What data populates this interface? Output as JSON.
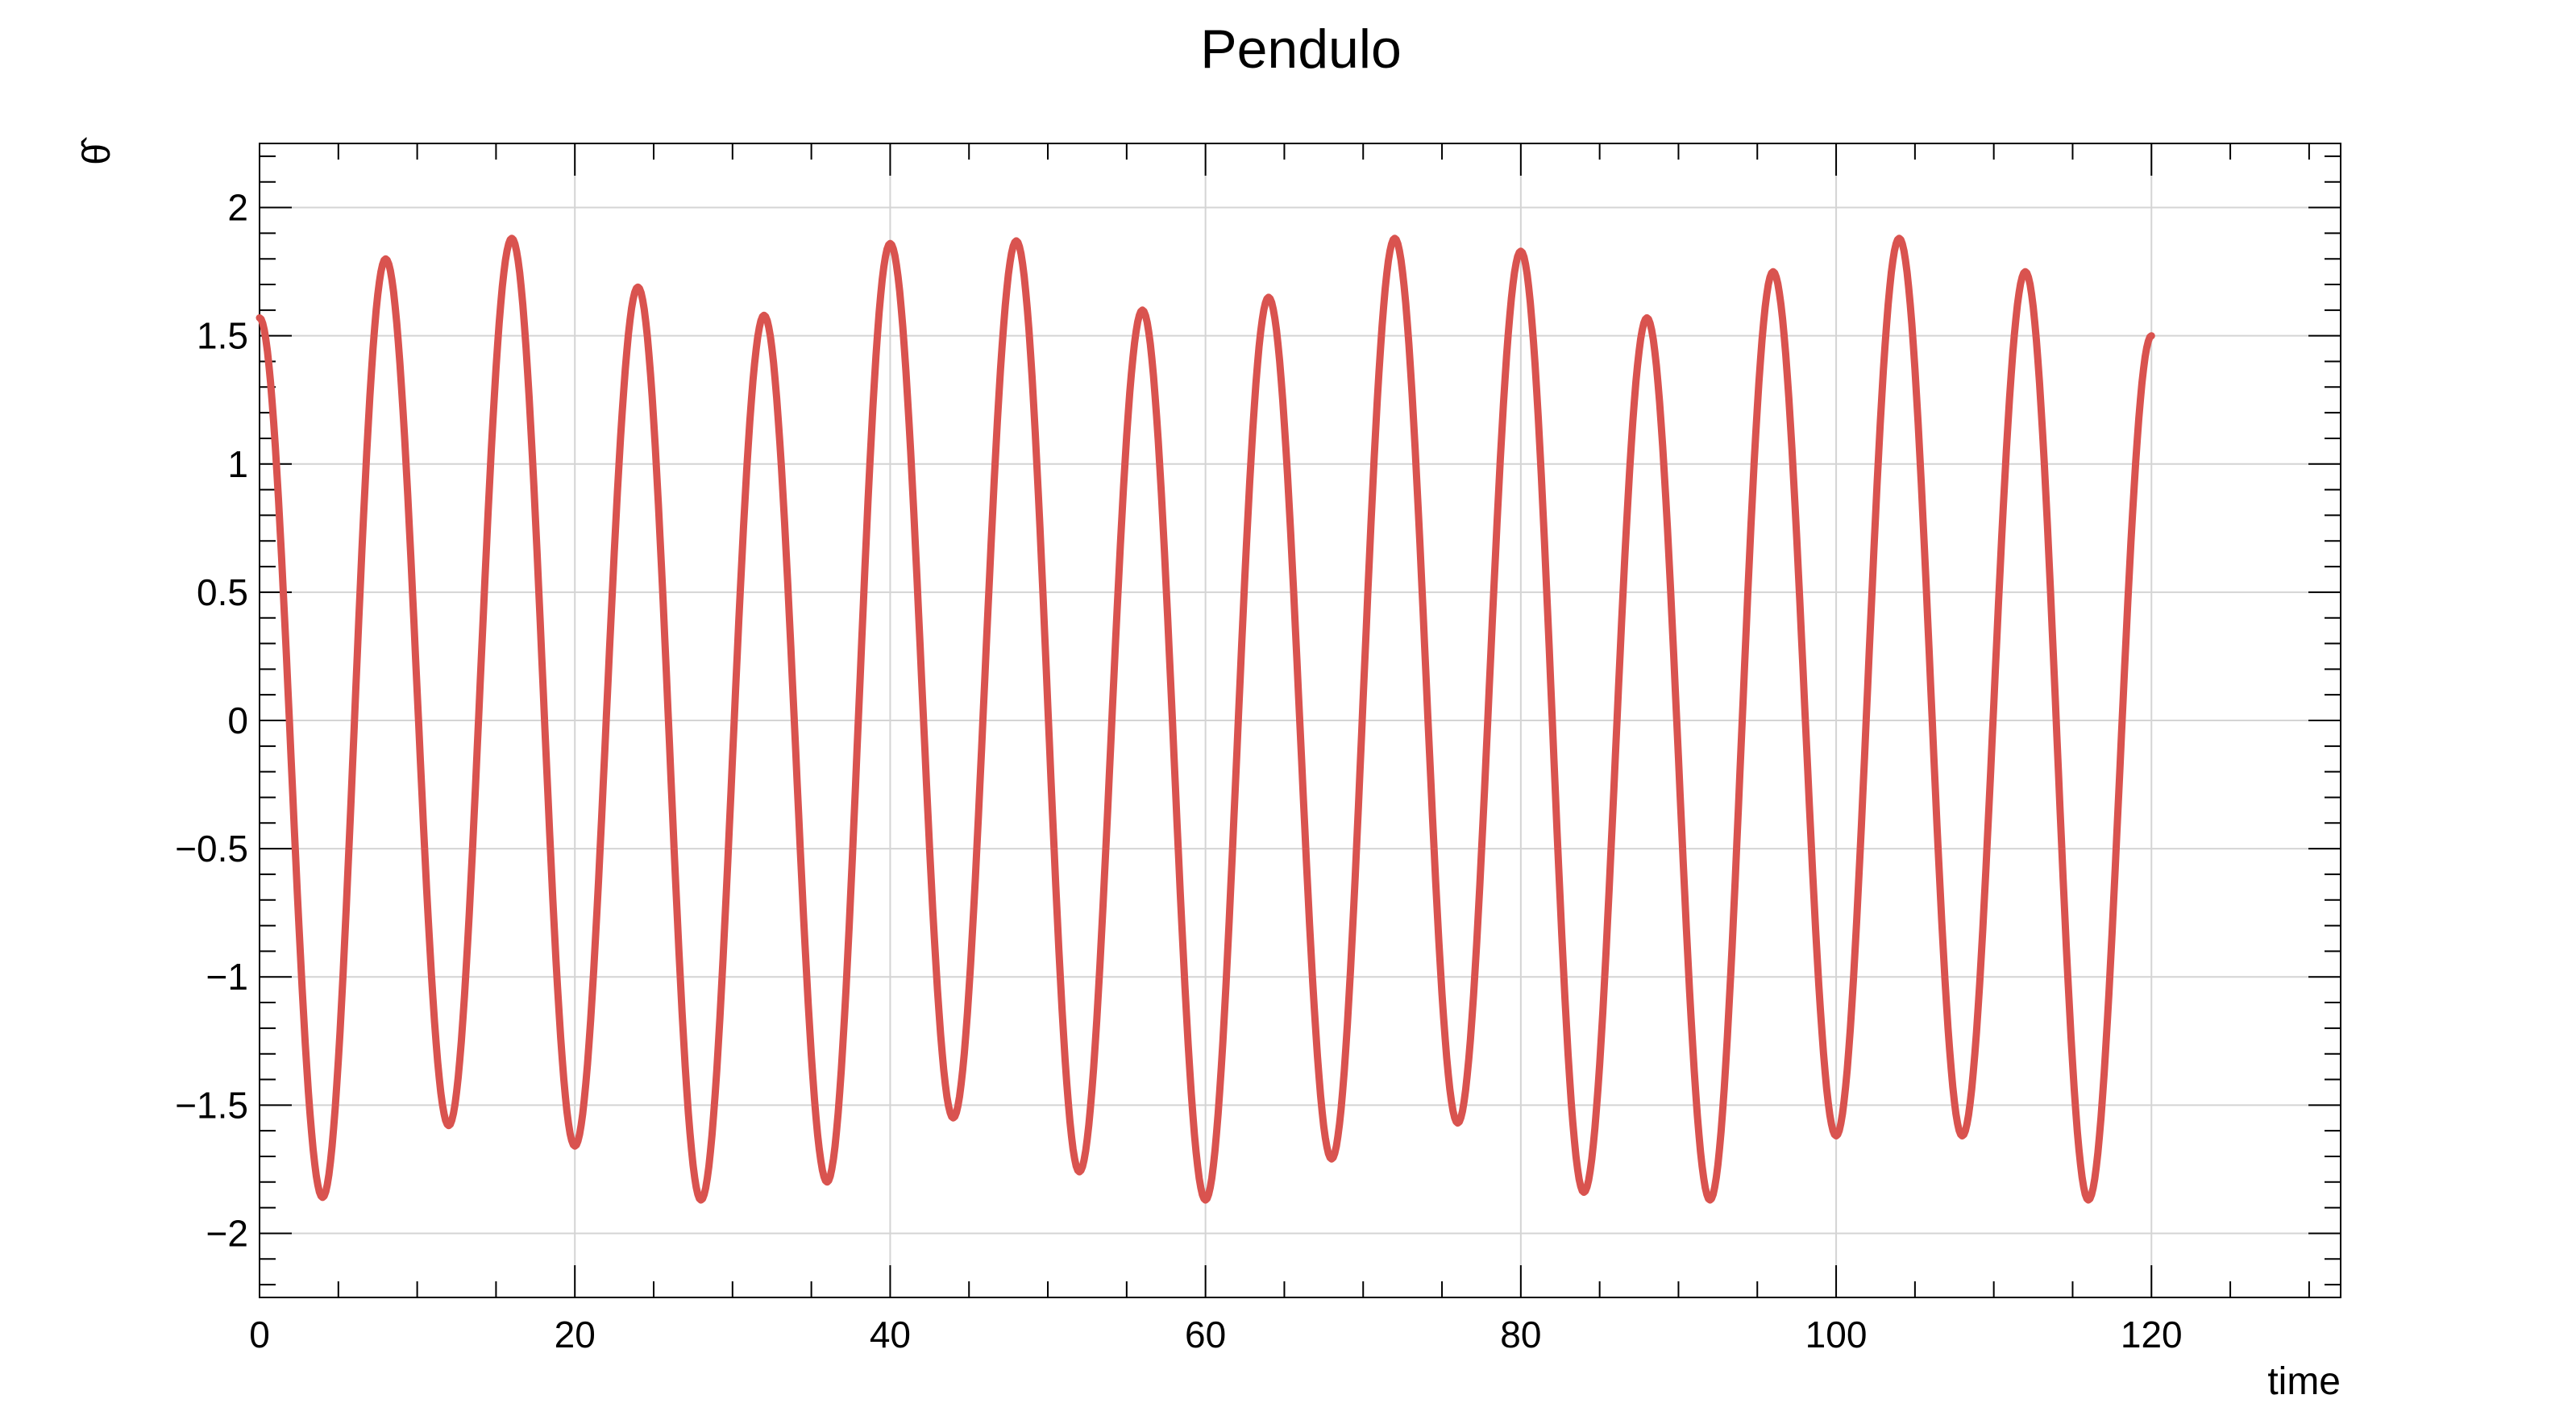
{
  "chart_data": {
    "type": "line",
    "title": "Pendulo",
    "xlabel": "time",
    "ylabel": "θ̂",
    "xlim": [
      0,
      132
    ],
    "ylim": [
      -2.25,
      2.25
    ],
    "x_ticks": [
      0,
      20,
      40,
      60,
      80,
      100,
      120
    ],
    "x_tick_labels": [
      "0",
      "20",
      "40",
      "60",
      "80",
      "100",
      "120"
    ],
    "y_ticks": [
      -2,
      -1.5,
      -1,
      -0.5,
      0,
      0.5,
      1,
      1.5,
      2
    ],
    "y_tick_labels": [
      "−2",
      "−1.5",
      "−1",
      "−0.5",
      "0",
      "0.5",
      "1",
      "1.5",
      "2"
    ],
    "grid": true,
    "legend": "none",
    "series": [
      {
        "color": "#d9534f",
        "x": [
          0,
          4,
          8,
          12,
          16,
          20,
          24,
          28,
          32,
          36,
          40,
          44,
          48,
          52,
          56,
          60,
          64,
          68,
          72,
          76,
          80,
          84,
          88,
          92,
          96,
          100,
          104,
          108,
          112,
          116,
          120
        ],
        "y": [
          1.57,
          -1.86,
          1.8,
          -1.58,
          1.88,
          -1.66,
          1.69,
          -1.87,
          1.58,
          -1.8,
          1.86,
          -1.55,
          1.87,
          -1.76,
          1.6,
          -1.87,
          1.65,
          -1.71,
          1.88,
          -1.57,
          1.83,
          -1.84,
          1.57,
          -1.87,
          1.75,
          -1.62,
          1.88,
          -1.62,
          1.75,
          -1.87,
          1.5
        ]
      }
    ]
  }
}
